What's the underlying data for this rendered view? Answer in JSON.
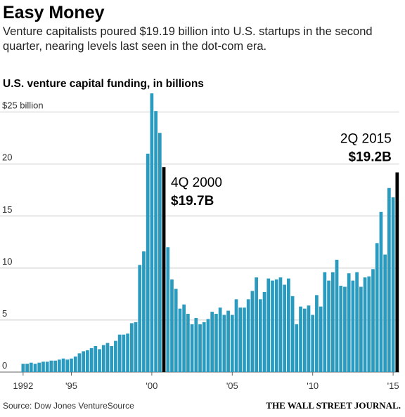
{
  "chart_data": {
    "type": "bar",
    "title": "Easy Money",
    "subtitle": "Venture capitalists poured $19.19 billion into U.S. startups in the second quarter, nearing levels last seen in the dot-com era.",
    "chart_title": "U.S. venture capital funding, in billions",
    "source": "Source: Dow Jones VentureSource",
    "credit": "THE WALL STREET JOURNAL.",
    "categories": [
      "1992",
      null,
      null,
      null,
      null,
      null,
      null,
      null,
      null,
      null,
      null,
      null,
      "'95",
      null,
      null,
      null,
      null,
      null,
      null,
      null,
      null,
      null,
      null,
      null,
      null,
      null,
      null,
      null,
      null,
      null,
      null,
      null,
      "'00",
      null,
      null,
      null,
      null,
      null,
      null,
      null,
      null,
      null,
      null,
      null,
      null,
      null,
      null,
      null,
      null,
      null,
      null,
      null,
      "'05",
      null,
      null,
      null,
      null,
      null,
      null,
      null,
      null,
      null,
      null,
      null,
      null,
      null,
      null,
      null,
      null,
      null,
      null,
      null,
      "'10",
      null,
      null,
      null,
      null,
      null,
      null,
      null,
      null,
      null,
      null,
      null,
      null,
      null,
      null,
      null,
      null,
      null,
      null,
      null,
      "'15",
      null
    ],
    "values": [
      0.8,
      0.8,
      0.9,
      0.8,
      0.9,
      1.0,
      1.0,
      1.1,
      1.1,
      1.2,
      1.3,
      1.2,
      1.3,
      1.5,
      1.8,
      2.0,
      2.1,
      2.3,
      2.5,
      2.2,
      2.6,
      2.8,
      2.5,
      3.0,
      3.6,
      3.6,
      3.7,
      4.7,
      4.8,
      10.3,
      11.6,
      21.0,
      26.8,
      25.1,
      23.0,
      19.7,
      12.0,
      8.9,
      8.0,
      6.1,
      6.5,
      5.6,
      4.6,
      5.2,
      4.6,
      4.8,
      5.1,
      5.8,
      5.6,
      6.2,
      5.5,
      5.9,
      5.5,
      7.0,
      6.2,
      6.2,
      7.0,
      7.8,
      9.1,
      7.0,
      7.7,
      9.0,
      8.8,
      8.9,
      9.1,
      8.4,
      9.0,
      7.3,
      4.6,
      6.3,
      6.1,
      6.4,
      5.5,
      7.4,
      6.3,
      9.6,
      8.8,
      9.6,
      10.8,
      8.3,
      8.2,
      9.5,
      8.8,
      9.6,
      8.2,
      9.1,
      9.2,
      9.9,
      12.4,
      15.4,
      11.3,
      17.7,
      16.8,
      19.2
    ],
    "value_labels": [
      null,
      null,
      null,
      null,
      null,
      null,
      null,
      null,
      null,
      null,
      null,
      null,
      null,
      null,
      null,
      null,
      null,
      null,
      null,
      null,
      null,
      null,
      null,
      null,
      null,
      null,
      null,
      null,
      null,
      null,
      null,
      null,
      null,
      null,
      null,
      "$19.7B",
      null,
      null,
      null,
      null,
      null,
      null,
      null,
      null,
      null,
      null,
      null,
      null,
      null,
      null,
      null,
      null,
      null,
      null,
      null,
      null,
      null,
      null,
      null,
      null,
      null,
      null,
      null,
      null,
      null,
      null,
      null,
      null,
      null,
      null,
      null,
      null,
      null,
      null,
      null,
      null,
      null,
      null,
      null,
      null,
      null,
      null,
      null,
      null,
      null,
      null,
      null,
      null,
      null,
      null,
      null,
      null,
      null,
      "$19.2B"
    ],
    "annotations": [
      null,
      null,
      null,
      null,
      null,
      null,
      null,
      null,
      null,
      null,
      null,
      null,
      null,
      null,
      null,
      null,
      null,
      null,
      null,
      null,
      null,
      null,
      null,
      null,
      null,
      null,
      null,
      null,
      null,
      null,
      null,
      null,
      null,
      null,
      null,
      "4Q 2000",
      null,
      null,
      null,
      null,
      null,
      null,
      null,
      null,
      null,
      null,
      null,
      null,
      null,
      null,
      null,
      null,
      null,
      null,
      null,
      null,
      null,
      null,
      null,
      null,
      null,
      null,
      null,
      null,
      null,
      null,
      null,
      null,
      null,
      null,
      null,
      null,
      null,
      null,
      null,
      null,
      null,
      null,
      null,
      null,
      null,
      null,
      null,
      null,
      null,
      null,
      null,
      null,
      null,
      null,
      null,
      null,
      null,
      "2Q 2015"
    ],
    "color": "#2a9bbf",
    "highlight_color": "#000000",
    "ylim": [
      0,
      27
    ],
    "yticks": [
      0,
      5,
      10,
      15,
      20,
      {
        "value": 25,
        "label": "$25 billion"
      }
    ],
    "grid": true
  }
}
